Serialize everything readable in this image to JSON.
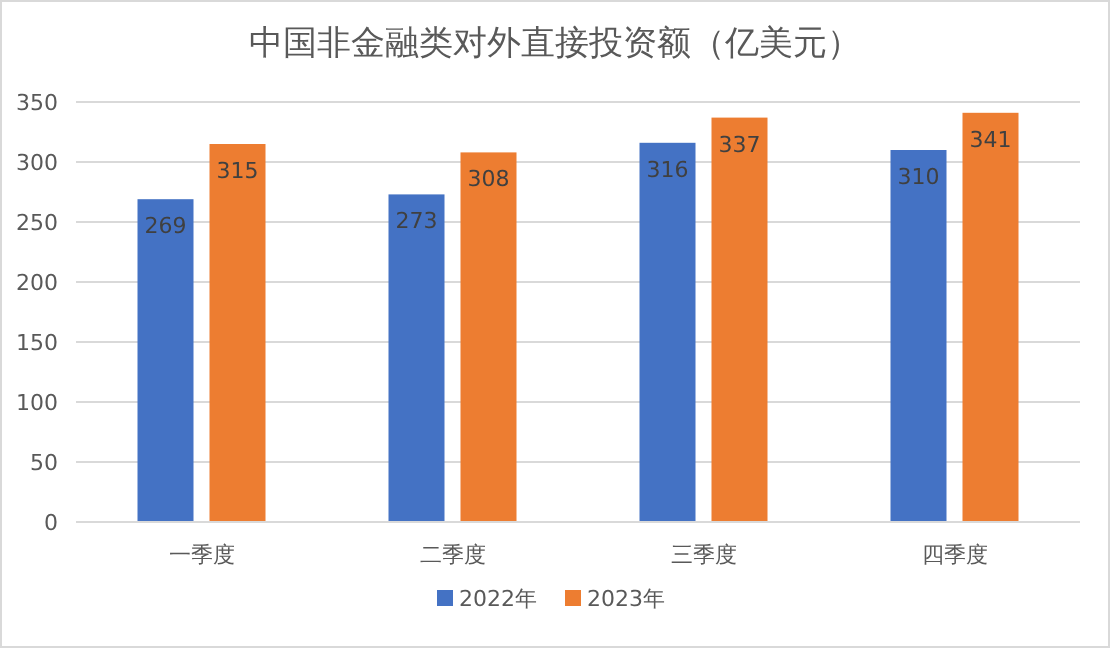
{
  "chart_data": {
    "type": "bar",
    "title": "中国非金融类对外直接投资额（亿美元）",
    "categories": [
      "一季度",
      "二季度",
      "三季度",
      "四季度"
    ],
    "series": [
      {
        "name": "2022年",
        "color": "#4472c4",
        "values": [
          269,
          273,
          316,
          310
        ]
      },
      {
        "name": "2023年",
        "color": "#ed7d31",
        "values": [
          315,
          308,
          337,
          341
        ]
      }
    ],
    "ylim": [
      0,
      350
    ],
    "yticks": [
      0,
      50,
      100,
      150,
      200,
      250,
      300,
      350
    ],
    "grid": "y",
    "legend": "bottom",
    "data_labels": true
  }
}
